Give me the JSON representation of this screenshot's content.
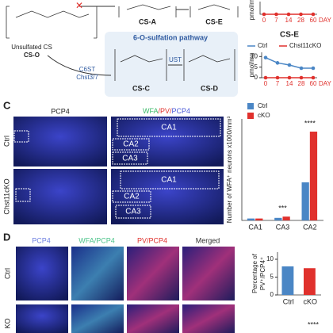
{
  "figure": {
    "diagram": {
      "cs_a": "CS-A",
      "cs_e": "CS-E",
      "source": "Unsulfated CS",
      "cs_o": "CS-O",
      "pathway": "6-O-sulfation pathway",
      "enzyme1": "C6ST",
      "enzyme1_gene": "Chst3/7",
      "enzyme2": "UST",
      "cs_c": "CS-C",
      "cs_d": "CS-D"
    },
    "panel_c": {
      "label": "C",
      "col1": "PCP4",
      "col2_parts": [
        "WFA",
        "/PV/",
        "PCP4"
      ],
      "rows": [
        "Ctrl",
        "Chst11cKO"
      ],
      "regions": [
        "CA1",
        "CA2",
        "CA3"
      ]
    },
    "panel_d": {
      "label": "D",
      "cols": [
        "PCP4",
        "WFA/PCP4",
        "PV/PCP4",
        "Merged"
      ],
      "col_colors": [
        "#6d7fe0",
        "#4cc48a",
        "#e0312d",
        "#333333"
      ],
      "rows": [
        "Ctrl",
        "KO"
      ],
      "row2_annotation": "****"
    }
  },
  "chart_data": [
    {
      "type": "line",
      "ylabel": "pmol/mg",
      "xlabel": "DAY",
      "categories": [
        "0",
        "7",
        "14",
        "28",
        "60"
      ],
      "ylim": [
        0,
        12
      ],
      "series": [
        {
          "color": "#e0312d",
          "values": [
            0,
            0,
            0,
            0,
            0
          ]
        }
      ]
    },
    {
      "type": "line",
      "title": "CS-E",
      "ylabel": "pmol/mg",
      "xlabel": "DAY",
      "categories": [
        "0",
        "7",
        "14",
        "28",
        "60"
      ],
      "ylim": [
        0,
        12
      ],
      "yticks": [
        0,
        5,
        10
      ],
      "series": [
        {
          "name": "Ctrl",
          "color": "#4a86c5",
          "values": [
            9.5,
            7,
            6,
            4.5,
            4.5
          ]
        },
        {
          "name": "Chst11cKO",
          "color": "#e0312d",
          "values": [
            0,
            0,
            0,
            0,
            0
          ]
        }
      ]
    },
    {
      "type": "bar",
      "ylabel": "Number of WFA⁺ neurons x1000/mm³",
      "categories": [
        "CA1",
        "CA3",
        "CA2"
      ],
      "ylim": [
        0,
        80
      ],
      "series": [
        {
          "name": "Ctrl",
          "color": "#4a86c5",
          "values": [
            1.5,
            2,
            30
          ]
        },
        {
          "name": "cKO",
          "color": "#e0312d",
          "values": [
            1.5,
            3,
            70
          ]
        }
      ],
      "annotations": [
        null,
        "***",
        "****"
      ]
    },
    {
      "type": "bar",
      "ylabel": [
        "Percentage of",
        "PV⁺/PCP4⁺"
      ],
      "categories": [
        "Ctrl",
        "cKO"
      ],
      "ylim": [
        0,
        12
      ],
      "yticks": [
        0,
        5,
        10
      ],
      "series": [
        {
          "color": "#4a86c5",
          "colors": [
            "#4a86c5",
            "#e0312d"
          ],
          "values": [
            8,
            7.5
          ]
        }
      ]
    }
  ]
}
